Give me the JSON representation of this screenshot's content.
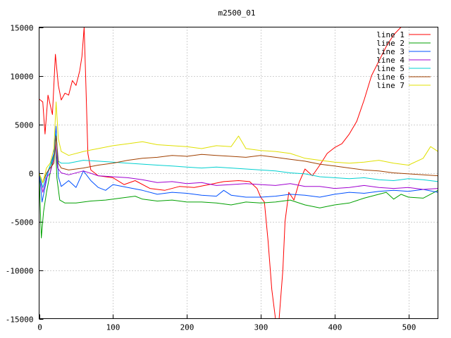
{
  "chart_data": {
    "type": "line",
    "title": "m2500_01",
    "xlabel": "",
    "ylabel": "",
    "xlim": [
      0,
      540
    ],
    "ylim": [
      -15000,
      15000
    ],
    "x_ticks": [
      0,
      100,
      200,
      300,
      400,
      500
    ],
    "y_ticks": [
      -15000,
      -10000,
      -5000,
      0,
      5000,
      10000,
      15000
    ],
    "grid": true,
    "legend_position": "top-right",
    "series": [
      {
        "name": "line 1",
        "color": "#ff0000",
        "points": [
          [
            0,
            7600
          ],
          [
            5,
            7300
          ],
          [
            8,
            4000
          ],
          [
            12,
            8000
          ],
          [
            18,
            6000
          ],
          [
            22,
            12200
          ],
          [
            26,
            9000
          ],
          [
            30,
            7500
          ],
          [
            35,
            8200
          ],
          [
            40,
            8000
          ],
          [
            45,
            9500
          ],
          [
            50,
            9000
          ],
          [
            55,
            10500
          ],
          [
            58,
            12000
          ],
          [
            61,
            15000
          ],
          [
            63,
            10000
          ],
          [
            66,
            2000
          ],
          [
            70,
            300
          ],
          [
            80,
            -300
          ],
          [
            100,
            -500
          ],
          [
            115,
            -1200
          ],
          [
            130,
            -800
          ],
          [
            150,
            -1600
          ],
          [
            170,
            -1800
          ],
          [
            190,
            -1400
          ],
          [
            210,
            -1500
          ],
          [
            230,
            -1200
          ],
          [
            250,
            -900
          ],
          [
            270,
            -800
          ],
          [
            285,
            -900
          ],
          [
            295,
            -1600
          ],
          [
            300,
            -2500
          ],
          [
            305,
            -3000
          ],
          [
            310,
            -7000
          ],
          [
            315,
            -12000
          ],
          [
            320,
            -15000
          ],
          [
            325,
            -15000
          ],
          [
            330,
            -10000
          ],
          [
            333,
            -5000
          ],
          [
            338,
            -2000
          ],
          [
            345,
            -2800
          ],
          [
            352,
            -1000
          ],
          [
            360,
            400
          ],
          [
            370,
            -300
          ],
          [
            380,
            800
          ],
          [
            390,
            2000
          ],
          [
            400,
            2600
          ],
          [
            410,
            3000
          ],
          [
            420,
            4000
          ],
          [
            430,
            5300
          ],
          [
            440,
            7500
          ],
          [
            450,
            10000
          ],
          [
            460,
            11500
          ],
          [
            470,
            13000
          ],
          [
            480,
            14200
          ],
          [
            490,
            15000
          ],
          [
            500,
            15000
          ],
          [
            520,
            15000
          ],
          [
            540,
            15000
          ]
        ]
      },
      {
        "name": "line 2",
        "color": "#00a000",
        "points": [
          [
            0,
            0
          ],
          [
            3,
            -6700
          ],
          [
            6,
            -4000
          ],
          [
            10,
            -2000
          ],
          [
            15,
            0
          ],
          [
            20,
            2000
          ],
          [
            22,
            3500
          ],
          [
            24,
            -500
          ],
          [
            28,
            -2800
          ],
          [
            35,
            -3100
          ],
          [
            50,
            -3100
          ],
          [
            70,
            -2900
          ],
          [
            90,
            -2800
          ],
          [
            110,
            -2600
          ],
          [
            130,
            -2400
          ],
          [
            140,
            -2700
          ],
          [
            160,
            -2900
          ],
          [
            180,
            -2800
          ],
          [
            200,
            -3000
          ],
          [
            220,
            -3000
          ],
          [
            240,
            -3100
          ],
          [
            260,
            -3300
          ],
          [
            280,
            -3000
          ],
          [
            300,
            -3100
          ],
          [
            320,
            -3000
          ],
          [
            340,
            -2800
          ],
          [
            360,
            -3300
          ],
          [
            380,
            -3600
          ],
          [
            400,
            -3300
          ],
          [
            420,
            -3100
          ],
          [
            440,
            -2600
          ],
          [
            460,
            -2200
          ],
          [
            470,
            -2000
          ],
          [
            480,
            -2700
          ],
          [
            490,
            -2200
          ],
          [
            500,
            -2500
          ],
          [
            520,
            -2600
          ],
          [
            540,
            -1800
          ]
        ]
      },
      {
        "name": "line 3",
        "color": "#0050ff",
        "points": [
          [
            0,
            300
          ],
          [
            4,
            -3000
          ],
          [
            8,
            -1500
          ],
          [
            12,
            0
          ],
          [
            16,
            1000
          ],
          [
            20,
            2000
          ],
          [
            23,
            4800
          ],
          [
            26,
            -400
          ],
          [
            30,
            -1400
          ],
          [
            40,
            -800
          ],
          [
            50,
            -1500
          ],
          [
            60,
            200
          ],
          [
            70,
            -800
          ],
          [
            80,
            -1500
          ],
          [
            90,
            -1800
          ],
          [
            100,
            -1200
          ],
          [
            120,
            -1500
          ],
          [
            140,
            -1800
          ],
          [
            160,
            -2200
          ],
          [
            180,
            -2000
          ],
          [
            200,
            -2100
          ],
          [
            220,
            -2300
          ],
          [
            240,
            -2400
          ],
          [
            250,
            -1800
          ],
          [
            260,
            -2300
          ],
          [
            280,
            -2500
          ],
          [
            300,
            -2500
          ],
          [
            320,
            -2400
          ],
          [
            340,
            -2200
          ],
          [
            360,
            -2300
          ],
          [
            380,
            -2500
          ],
          [
            400,
            -2200
          ],
          [
            420,
            -2000
          ],
          [
            440,
            -2100
          ],
          [
            460,
            -1900
          ],
          [
            480,
            -1800
          ],
          [
            500,
            -1900
          ],
          [
            520,
            -1700
          ],
          [
            540,
            -2000
          ]
        ]
      },
      {
        "name": "line 4",
        "color": "#a000d0",
        "points": [
          [
            0,
            0
          ],
          [
            5,
            -2000
          ],
          [
            10,
            -500
          ],
          [
            15,
            0
          ],
          [
            20,
            1500
          ],
          [
            22,
            3200
          ],
          [
            25,
            500
          ],
          [
            30,
            0
          ],
          [
            40,
            -200
          ],
          [
            60,
            200
          ],
          [
            80,
            -300
          ],
          [
            100,
            -400
          ],
          [
            120,
            -500
          ],
          [
            140,
            -700
          ],
          [
            160,
            -1000
          ],
          [
            180,
            -900
          ],
          [
            200,
            -1100
          ],
          [
            220,
            -1000
          ],
          [
            240,
            -1300
          ],
          [
            260,
            -1200
          ],
          [
            280,
            -1100
          ],
          [
            300,
            -1200
          ],
          [
            320,
            -1300
          ],
          [
            340,
            -1100
          ],
          [
            360,
            -1400
          ],
          [
            380,
            -1400
          ],
          [
            400,
            -1600
          ],
          [
            420,
            -1500
          ],
          [
            440,
            -1300
          ],
          [
            460,
            -1500
          ],
          [
            480,
            -1600
          ],
          [
            500,
            -1500
          ],
          [
            520,
            -1700
          ],
          [
            540,
            -1600
          ]
        ]
      },
      {
        "name": "line 5",
        "color": "#00d0d0",
        "points": [
          [
            0,
            0
          ],
          [
            5,
            -1500
          ],
          [
            10,
            -200
          ],
          [
            15,
            800
          ],
          [
            20,
            1500
          ],
          [
            23,
            4000
          ],
          [
            26,
            1200
          ],
          [
            30,
            1000
          ],
          [
            40,
            1000
          ],
          [
            60,
            1300
          ],
          [
            80,
            1200
          ],
          [
            100,
            1100
          ],
          [
            120,
            1000
          ],
          [
            140,
            900
          ],
          [
            160,
            800
          ],
          [
            180,
            700
          ],
          [
            200,
            600
          ],
          [
            220,
            500
          ],
          [
            240,
            600
          ],
          [
            260,
            500
          ],
          [
            280,
            400
          ],
          [
            300,
            300
          ],
          [
            320,
            200
          ],
          [
            340,
            0
          ],
          [
            360,
            -100
          ],
          [
            380,
            -400
          ],
          [
            400,
            -500
          ],
          [
            420,
            -600
          ],
          [
            440,
            -500
          ],
          [
            460,
            -700
          ],
          [
            480,
            -800
          ],
          [
            500,
            -600
          ],
          [
            520,
            -700
          ],
          [
            540,
            -900
          ]
        ]
      },
      {
        "name": "line 6",
        "color": "#a04000",
        "points": [
          [
            0,
            0
          ],
          [
            5,
            -1000
          ],
          [
            10,
            0
          ],
          [
            15,
            500
          ],
          [
            20,
            1000
          ],
          [
            23,
            3800
          ],
          [
            26,
            1000
          ],
          [
            30,
            500
          ],
          [
            40,
            300
          ],
          [
            60,
            500
          ],
          [
            80,
            800
          ],
          [
            100,
            1000
          ],
          [
            120,
            1300
          ],
          [
            140,
            1500
          ],
          [
            160,
            1600
          ],
          [
            180,
            1800
          ],
          [
            200,
            1700
          ],
          [
            220,
            1900
          ],
          [
            240,
            1800
          ],
          [
            260,
            1700
          ],
          [
            280,
            1600
          ],
          [
            300,
            1800
          ],
          [
            320,
            1600
          ],
          [
            340,
            1400
          ],
          [
            360,
            1200
          ],
          [
            380,
            900
          ],
          [
            400,
            700
          ],
          [
            420,
            500
          ],
          [
            440,
            300
          ],
          [
            460,
            200
          ],
          [
            480,
            0
          ],
          [
            500,
            -100
          ],
          [
            520,
            -200
          ],
          [
            540,
            -300
          ]
        ]
      },
      {
        "name": "line 7",
        "color": "#e0e000",
        "points": [
          [
            0,
            0
          ],
          [
            5,
            -1000
          ],
          [
            10,
            500
          ],
          [
            15,
            1000
          ],
          [
            20,
            2500
          ],
          [
            23,
            7300
          ],
          [
            26,
            3500
          ],
          [
            30,
            2200
          ],
          [
            40,
            1800
          ],
          [
            60,
            2200
          ],
          [
            80,
            2500
          ],
          [
            100,
            2800
          ],
          [
            120,
            3000
          ],
          [
            140,
            3200
          ],
          [
            160,
            2900
          ],
          [
            180,
            2800
          ],
          [
            200,
            2700
          ],
          [
            220,
            2500
          ],
          [
            240,
            2800
          ],
          [
            260,
            2700
          ],
          [
            270,
            3800
          ],
          [
            280,
            2500
          ],
          [
            300,
            2300
          ],
          [
            320,
            2200
          ],
          [
            340,
            2000
          ],
          [
            360,
            1500
          ],
          [
            380,
            1300
          ],
          [
            400,
            1100
          ],
          [
            420,
            1000
          ],
          [
            440,
            1100
          ],
          [
            460,
            1300
          ],
          [
            480,
            1000
          ],
          [
            500,
            800
          ],
          [
            520,
            1500
          ],
          [
            530,
            2700
          ],
          [
            540,
            2200
          ]
        ]
      }
    ]
  }
}
